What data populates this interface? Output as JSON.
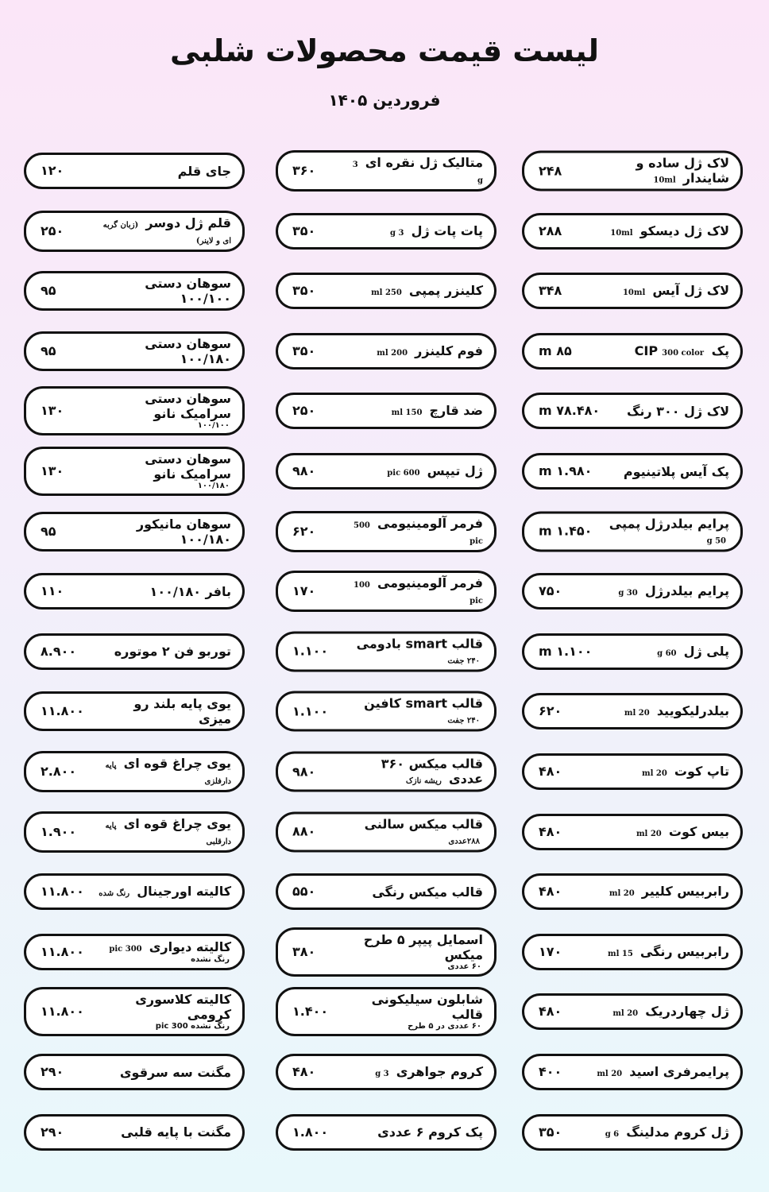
{
  "header": {
    "title": "لیست قیمت محصولات شلبی",
    "subtitle": "فروردین ۱۴۰۵"
  },
  "columns": [
    {
      "items": [
        {
          "name": "لاک ژل ساده و شایندار",
          "spec": "10ml",
          "price": "۲۴۸"
        },
        {
          "name": "لاک ژل دیسکو",
          "spec": "10ml",
          "price": "۲۸۸"
        },
        {
          "name": "لاک ژل آیس",
          "spec": "10ml",
          "price": "۳۴۸"
        },
        {
          "name": "پک CIP",
          "spec": "300 color",
          "price": "۸۵ m"
        },
        {
          "name": "لاک ژل ۳۰۰ رنگ",
          "price": "۷۸.۴۸۰ m"
        },
        {
          "name": "پک آیس پلاتینیوم",
          "price": "۱.۹۸۰ m"
        },
        {
          "name": "پرایم بیلدرژل پمپی",
          "spec": "50 g",
          "price": "۱.۴۵۰ m"
        },
        {
          "name": "پرایم بیلدرژل",
          "spec": "30 g",
          "price": "۷۵۰"
        },
        {
          "name": "پلی ژل",
          "spec": "60 g",
          "price": "۱.۱۰۰ m"
        },
        {
          "name": "بیلدرلیکویید",
          "spec": "20 ml",
          "price": "۶۲۰"
        },
        {
          "name": "تاپ کوت",
          "spec": "20 ml",
          "price": "۴۸۰"
        },
        {
          "name": "بیس کوت",
          "spec": "20 ml",
          "price": "۴۸۰"
        },
        {
          "name": "رابربیس کلییر",
          "spec": "20 ml",
          "price": "۴۸۰"
        },
        {
          "name": "رابربیس رنگی",
          "spec": "15 ml",
          "price": "۱۷۰"
        },
        {
          "name": "ژل چهاردریک",
          "spec": "20 ml",
          "price": "۴۸۰"
        },
        {
          "name": "پرایمرفری اسید",
          "spec": "20 ml",
          "price": "۴۰۰"
        },
        {
          "name": "ژل کروم مدلینگ",
          "spec": "6 g",
          "price": "۳۵۰"
        }
      ]
    },
    {
      "items": [
        {
          "name": "متالیک ژل نقره ای",
          "spec": "3 g",
          "price": "۳۶۰"
        },
        {
          "name": "پات پات ژل",
          "spec": "3 g",
          "price": "۳۵۰"
        },
        {
          "name": "کلینزر پمپی",
          "spec": "250 ml",
          "price": "۳۵۰"
        },
        {
          "name": "فوم کلینزر",
          "spec": "200 ml",
          "price": "۳۵۰"
        },
        {
          "name": "ضد قارچ",
          "spec": "150 ml",
          "price": "۲۵۰"
        },
        {
          "name": "ژل تیپس",
          "spec": "600 pic",
          "price": "۹۸۰"
        },
        {
          "name": "فرمر آلومینیومی",
          "spec": "500 pic",
          "price": "۶۲۰"
        },
        {
          "name": "فرمر آلومینیومی",
          "spec": "100 pic",
          "price": "۱۷۰"
        },
        {
          "name": "قالب smart بادومی",
          "spec": "۲۴۰ جفت",
          "price": "۱.۱۰۰"
        },
        {
          "name": "قالب smart کافین",
          "spec": "۲۴۰ جفت",
          "price": "۱.۱۰۰"
        },
        {
          "name": "قالب میکس ۳۶۰ عددی",
          "spec": "ریشه نازک",
          "price": "۹۸۰"
        },
        {
          "name": "قالب میکس سالنی",
          "spec": "۲۸۸عددی",
          "price": "۸۸۰"
        },
        {
          "name": "قالب میکس رنگی",
          "price": "۵۵۰"
        },
        {
          "name": "اسمایل پیپر ۵ طرح میکس",
          "sub": "۶۰ عددی",
          "price": "۳۸۰"
        },
        {
          "name": "شابلون سیلیکونی قالب",
          "sub": "۶۰ عددی در ۵ طرح",
          "price": "۱.۴۰۰"
        },
        {
          "name": "کروم جواهری",
          "spec": "3 g",
          "price": "۴۸۰"
        },
        {
          "name": "پک کروم ۶ عددی",
          "price": "۱.۸۰۰"
        }
      ]
    },
    {
      "items": [
        {
          "name": "جای قلم",
          "price": "۱۲۰"
        },
        {
          "name": "قلم ژل دوسر",
          "spec": "(زبان گربه ای و لاینر)",
          "price": "۲۵۰"
        },
        {
          "name": "سوهان دستی ۱۰۰/۱۰۰",
          "price": "۹۵"
        },
        {
          "name": "سوهان دستی ۱۰۰/۱۸۰",
          "price": "۹۵"
        },
        {
          "name": "سوهان دستی سرامیک نانو",
          "sub": "۱۰۰/۱۰۰",
          "price": "۱۳۰"
        },
        {
          "name": "سوهان دستی سرامیک نانو",
          "sub": "۱۰۰/۱۸۰",
          "price": "۱۳۰"
        },
        {
          "name": "سوهان مانیکور ۱۰۰/۱۸۰",
          "price": "۹۵"
        },
        {
          "name": "بافر ۱۰۰/۱۸۰",
          "price": "۱۱۰"
        },
        {
          "name": "توربو فن ۲ موتوره",
          "price": "۸.۹۰۰"
        },
        {
          "name": "یوی پایه بلند رو میزی",
          "price": "۱۱.۸۰۰"
        },
        {
          "name": "یوی چراغ قوه ای",
          "spec": "پایه دارفلزی",
          "price": "۲.۸۰۰"
        },
        {
          "name": "یوی چراغ قوه ای",
          "spec": "پایه دارقلبی",
          "price": "۱.۹۰۰"
        },
        {
          "name": "کالیته اورجینال",
          "spec": "رنگ شده",
          "price": "۱۱.۸۰۰"
        },
        {
          "name": "کالیته دیواری",
          "spec": "300 pic",
          "sub": "رنگ نشده",
          "price": "۱۱.۸۰۰"
        },
        {
          "name": "کالیته کلاسوری کرومی",
          "sub": "رنگ نشده 300 pic",
          "price": "۱۱.۸۰۰"
        },
        {
          "name": "مگنت سه سرقوی",
          "price": "۲۹۰"
        },
        {
          "name": "مگنت با پایه قلبی",
          "price": "۲۹۰"
        }
      ]
    }
  ]
}
